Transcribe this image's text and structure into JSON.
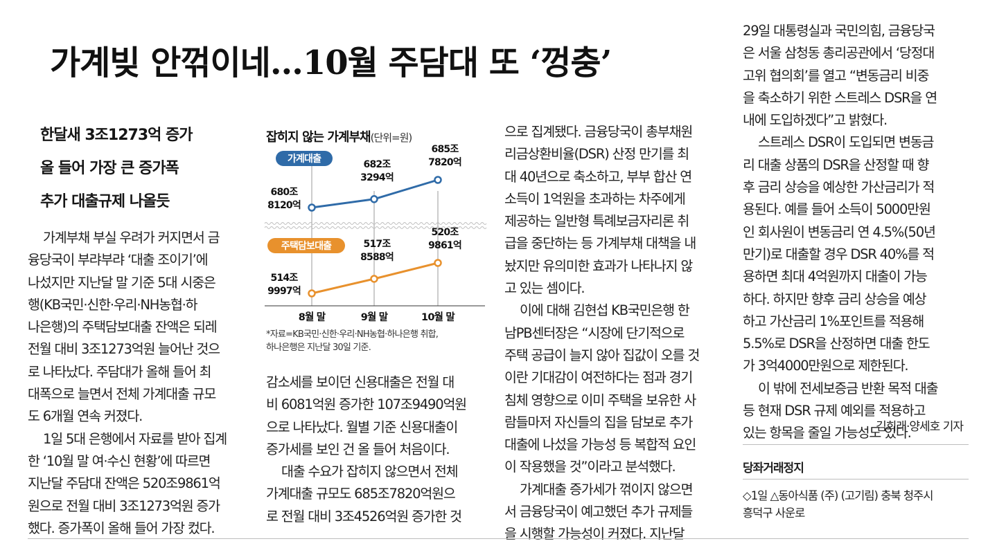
{
  "headline": "가계빚 안꺾이네…10월 주담대 또 ‘껑충’",
  "subheads": [
    "한달새 3조1273억 증가",
    "올 들어 가장 큰 증가폭",
    "추가 대출규제 나올듯"
  ],
  "columns": {
    "col1": [
      "가계부채 부실 우려가 커지면서 금",
      "융당국이 부랴부랴 ‘대출 조이기’에",
      "나섰지만 지난달 말 기준 5대 시중은",
      "행(KB국민·신한·우리·NH농협·하",
      "나은행)의 주택담보대출 잔액은 되레",
      "전월 대비 3조1273억원 늘어난 것으",
      "로 나타났다. 주담대가 올해 들어 최",
      "대폭으로 늘면서 전체 가계대출 규모",
      "도 6개월 연속 커졌다.",
      "1일 5대 은행에서 자료를 받아 집계",
      "한 ‘10월 말 여·수신 현황’에 따르면",
      "지난달 주담대 잔액은 520조9861억",
      "원으로 전월 대비 3조1273억원 증가",
      "했다. 증가폭이 올해 들어 가장 컸다."
    ],
    "col2": [
      "감소세를 보이던 신용대출은 전월 대",
      "비 6081억원 증가한 107조9490억원",
      "으로 나타났다. 월별 기준 신용대출이",
      "증가세를 보인 건 올 들어 처음이다.",
      "대출 수요가 잡히지 않으면서 전체",
      "가계대출 규모도 685조7820억원으",
      "로 전월 대비 3조4526억원 증가한 것"
    ],
    "col3": [
      "으로 집계됐다. 금융당국이 총부채원",
      "리금상환비율(DSR) 산정 만기를 최",
      "대 40년으로 축소하고, 부부 합산 연",
      "소득이 1억원을 초과하는 차주에게",
      "제공하는 일반형 특례보금자리론 취",
      "급을 중단하는 등 가계부채 대책을 내",
      "놨지만 유의미한 효과가 나타나지 않",
      "고 있는 셈이다.",
      "이에 대해 김현섭 KB국민은행 한",
      "남PB센터장은 “시장에 단기적으로",
      "주택 공급이 늘지 않아 집값이 오를 것",
      "이란 기대감이 여전하다는 점과 경기",
      "침체 영향으로 이미 주택을 보유한 사",
      "람들마저 자신들의 집을 담보로 추가",
      "대출에 나섰을 가능성 등 복합적 요인",
      "이 작용했을 것”이라고 분석했다.",
      "가계대출 증가세가 꺾이지 않으면",
      "서 금융당국이 예고했던 추가 규제들",
      "을 시행할 가능성이 커졌다. 지난달"
    ],
    "col4": [
      "29일 대통령실과 국민의힘, 금융당국",
      "은 서울 삼청동 총리공관에서 ‘당정대",
      "고위 협의회’를 열고 “변동금리 비중",
      "을 축소하기 위한 스트레스 DSR을 연",
      "내에 도입하겠다”고 밝혔다.",
      "스트레스 DSR이 도입되면 변동금",
      "리 대출 상품의 DSR을 산정할 때 향",
      "후 금리 상승을 예상한 가산금리가 적",
      "용된다. 예를 들어 소득이 5000만원",
      "인 회사원이 변동금리 연 4.5%(50년",
      "만기)로 대출할 경우 DSR 40%를 적",
      "용하면 최대 4억원까지 대출이 가능",
      "하다. 하지만 향후 금리 상승을 예상",
      "하고 가산금리 1%포인트를 적용해",
      "5.5%로 DSR을 산정하면 대출 한도",
      "가 3억4000만원으로 제한된다.",
      "이 밖에 전세보증금 반환 목적 대출",
      "등 현재 DSR 규제 예외를 적용하고",
      "있는 항목을 줄일 가능성도 있다."
    ]
  },
  "byline": "김희래·양세호 기자",
  "notice": {
    "title": "당좌거래정지",
    "lines": [
      "◇1일 △동아식품 (주) (고기림) 충북 청주시",
      "흥덕구 사운로"
    ]
  },
  "chart_data": {
    "type": "line",
    "title": "잡히지 않는 가계부채",
    "unit": "(단위=원)",
    "categories": [
      "8월 말",
      "9월 말",
      "10월 말"
    ],
    "series": [
      {
        "name": "가계대출",
        "values": [
          6808120,
          6823294,
          6857820
        ],
        "labels": [
          "680조|8120억",
          "682조|3294억",
          "685조|7820억"
        ],
        "color": "#2f6ba8"
      },
      {
        "name": "주택담보대출",
        "values": [
          5149997,
          5178588,
          5209861
        ],
        "labels": [
          "514조|9997억",
          "517조|8588억",
          "520조|9861억"
        ],
        "color": "#e8912d"
      }
    ],
    "value_unit": "억원",
    "source": [
      "*자료=KB국민·신한·우리·NH농협·하나은행 취합,",
      "하나은행은 지난달 30일 기준."
    ],
    "colors": {
      "grid_line": "#9a9a9a",
      "wave": "#bfbfbf"
    }
  }
}
